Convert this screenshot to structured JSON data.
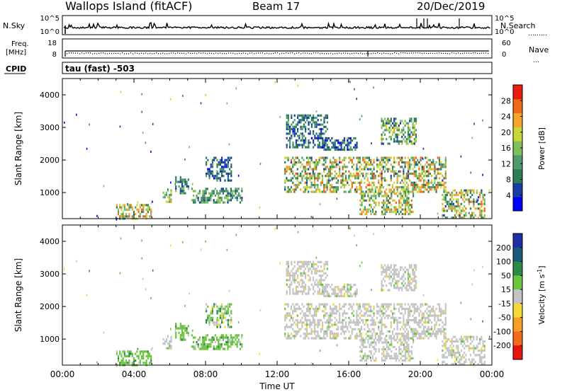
{
  "header": {
    "station": "Wallops Island (fitACF)",
    "beam": "Beam 17",
    "date": "20/Dec/2019"
  },
  "noise_panel": {
    "left_label": "N.Sky",
    "right_label": "N.Search",
    "left_ticks": [
      "10^5",
      "10^0"
    ],
    "right_ticks": [
      "10^5",
      "10^0"
    ]
  },
  "freq_panel": {
    "left_label_1": "Freq.",
    "left_label_2": "[MHz]",
    "left_ticks": [
      "18",
      "8"
    ],
    "right_label": "Nave",
    "right_ticks": [
      "60",
      "0"
    ]
  },
  "cpid": {
    "label": "CPID",
    "value": "tau (fast) -503"
  },
  "colors": {
    "power": [
      "#0000ff",
      "#1a3ca6",
      "#2e7d55",
      "#4f9a6e",
      "#7fbf5e",
      "#c8d838",
      "#f4a52a",
      "#f06a1a",
      "#e81c10"
    ],
    "velocity": [
      "#1e2fa8",
      "#1c5a7c",
      "#2b8a4a",
      "#6ac43c",
      "#c4c4c4",
      "#f6d836",
      "#f7a028",
      "#f26a1a",
      "#e51410"
    ]
  },
  "chart_data": [
    {
      "type": "heatmap",
      "name": "power",
      "ylabel": "Slant Range [km]",
      "xlim": [
        "00:00",
        "24:00"
      ],
      "ylim": [
        200,
        4500
      ],
      "y_ticks": [
        1000,
        2000,
        3000,
        4000
      ],
      "colorbar_label": "Power [dB]",
      "colorbar_ticks": [
        4,
        8,
        12,
        16,
        20,
        24,
        28
      ],
      "colorbar_range": [
        0,
        32
      ],
      "regions": [
        {
          "t0": 3.0,
          "t1": 5.0,
          "r0": 200,
          "r1": 650,
          "min": 8,
          "max": 28
        },
        {
          "t0": 5.6,
          "t1": 6.1,
          "r0": 750,
          "r1": 1100,
          "min": 12,
          "max": 24
        },
        {
          "t0": 6.3,
          "t1": 7.0,
          "r0": 1000,
          "r1": 1500,
          "min": 4,
          "max": 16
        },
        {
          "t0": 7.2,
          "t1": 10.0,
          "r0": 700,
          "r1": 1150,
          "min": 6,
          "max": 18
        },
        {
          "t0": 8.0,
          "t1": 9.4,
          "r0": 1400,
          "r1": 2100,
          "min": 3,
          "max": 12
        },
        {
          "t0": 12.4,
          "t1": 21.4,
          "r0": 1050,
          "r1": 2100,
          "min": 6,
          "max": 28
        },
        {
          "t0": 12.5,
          "t1": 14.8,
          "r0": 2400,
          "r1": 3400,
          "min": 3,
          "max": 14
        },
        {
          "t0": 14.5,
          "t1": 16.5,
          "r0": 2300,
          "r1": 2700,
          "min": 3,
          "max": 12
        },
        {
          "t0": 17.8,
          "t1": 19.8,
          "r0": 2500,
          "r1": 3300,
          "min": 6,
          "max": 22
        },
        {
          "t0": 16.6,
          "t1": 19.6,
          "r0": 350,
          "r1": 1000,
          "min": 8,
          "max": 26
        },
        {
          "t0": 21.2,
          "t1": 23.6,
          "r0": 200,
          "r1": 1100,
          "min": 6,
          "max": 26
        }
      ]
    },
    {
      "type": "heatmap",
      "name": "velocity",
      "ylabel": "Slant Range [km]",
      "xlabel": "Time UT",
      "x_ticks": [
        "00:00",
        "04:00",
        "08:00",
        "12:00",
        "16:00",
        "20:00",
        "00:00"
      ],
      "xlim": [
        "00:00",
        "24:00"
      ],
      "ylim": [
        200,
        4500
      ],
      "y_ticks": [
        1000,
        2000,
        3000,
        4000
      ],
      "colorbar_label": "Velocity [m s^-1]",
      "colorbar_ticks": [
        200,
        100,
        50,
        15,
        -15,
        -50,
        -100,
        -200
      ],
      "regions": [
        {
          "t0": 3.0,
          "t1": 5.0,
          "r0": 200,
          "r1": 650,
          "class": "pos_small"
        },
        {
          "t0": 5.6,
          "t1": 6.1,
          "r0": 750,
          "r1": 1100,
          "class": "ground"
        },
        {
          "t0": 6.3,
          "t1": 7.0,
          "r0": 1000,
          "r1": 1500,
          "class": "pos_small"
        },
        {
          "t0": 7.2,
          "t1": 10.0,
          "r0": 700,
          "r1": 1150,
          "class": "pos_small"
        },
        {
          "t0": 8.0,
          "t1": 9.4,
          "r0": 1400,
          "r1": 2100,
          "class": "mixed"
        },
        {
          "t0": 12.4,
          "t1": 21.4,
          "r0": 1050,
          "r1": 2100,
          "class": "ground"
        },
        {
          "t0": 12.5,
          "t1": 14.8,
          "r0": 2400,
          "r1": 3400,
          "class": "ground"
        },
        {
          "t0": 17.8,
          "t1": 19.8,
          "r0": 2500,
          "r1": 3300,
          "class": "ground"
        },
        {
          "t0": 16.6,
          "t1": 19.6,
          "r0": 350,
          "r1": 1000,
          "class": "ground"
        },
        {
          "t0": 21.2,
          "t1": 23.6,
          "r0": 200,
          "r1": 1100,
          "class": "ground"
        }
      ]
    }
  ]
}
